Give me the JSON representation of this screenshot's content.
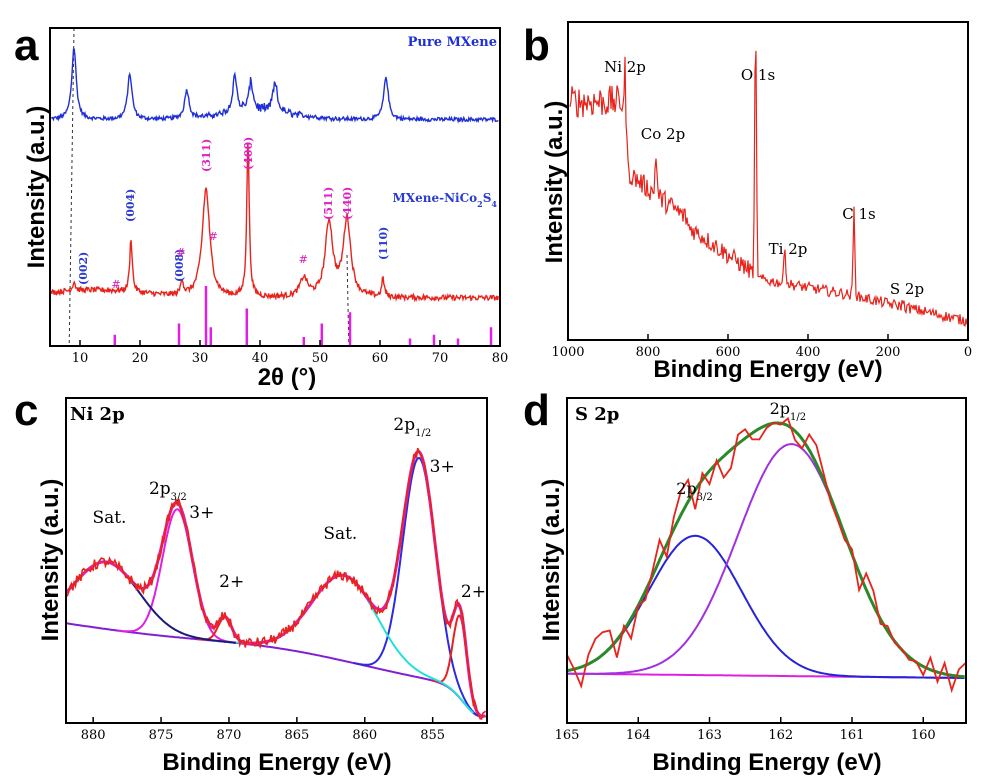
{
  "panels": [
    "a",
    "b",
    "c",
    "d"
  ],
  "chart_data": [
    {
      "id": "a",
      "type": "line",
      "xlabel": "2θ (°)",
      "ylabel": "Intensity (a.u.)",
      "xlim": [
        5,
        80
      ],
      "xticks": [
        10,
        20,
        30,
        40,
        50,
        60,
        70,
        80
      ],
      "colors": {
        "pure": "#1f2fd6",
        "composite": "#e8231b",
        "ref": "#e020e0",
        "hkl_blue": "#2b3bd0",
        "hkl_pink": "#e020c0"
      },
      "legend": {
        "pure": "Pure MXene",
        "composite_prefix": "MXene-NiCo",
        "composite_sub1": "2",
        "composite_mid": "S",
        "composite_sub2": "4"
      },
      "series": [
        {
          "name": "Pure MXene",
          "peaks": [
            [
              9,
              0.55
            ],
            [
              18.3,
              0.35
            ],
            [
              27.8,
              0.22
            ],
            [
              35.8,
              0.28
            ],
            [
              38.5,
              0.22
            ],
            [
              42.5,
              0.22
            ],
            [
              61,
              0.33
            ]
          ],
          "baseline": 0.05
        },
        {
          "name": "MXene-NiCo2S4",
          "peaks": [
            [
              9,
              0.06
            ],
            [
              18.5,
              0.35
            ],
            [
              27,
              0.1
            ],
            [
              31,
              0.7
            ],
            [
              38,
              1.0
            ],
            [
              47.3,
              0.12
            ],
            [
              51.5,
              0.48
            ],
            [
              54.5,
              0.5
            ],
            [
              60.5,
              0.12
            ]
          ],
          "baseline": 0.1
        }
      ],
      "reference_lines": [
        {
          "x": 15.8,
          "h": 0.15
        },
        {
          "x": 26.5,
          "h": 0.3
        },
        {
          "x": 31,
          "h": 0.8
        },
        {
          "x": 31.8,
          "h": 0.25
        },
        {
          "x": 37.8,
          "h": 0.5
        },
        {
          "x": 47.3,
          "h": 0.12
        },
        {
          "x": 50.3,
          "h": 0.3
        },
        {
          "x": 55,
          "h": 0.45
        },
        {
          "x": 65,
          "h": 0.1
        },
        {
          "x": 69,
          "h": 0.15
        },
        {
          "x": 73,
          "h": 0.1
        },
        {
          "x": 78.5,
          "h": 0.25
        }
      ],
      "hkl_labels": [
        {
          "text": "(002)",
          "x": 10.5,
          "color": "blue"
        },
        {
          "text": "(004)",
          "x": 18.3,
          "color": "blue"
        },
        {
          "text": "(008)",
          "x": 26.5,
          "color": "blue"
        },
        {
          "text": "(311)",
          "x": 31,
          "color": "pink"
        },
        {
          "text": "(400)",
          "x": 38,
          "color": "pink"
        },
        {
          "text": "(511)",
          "x": 51.3,
          "color": "pink"
        },
        {
          "text": "(440)",
          "x": 54.5,
          "color": "pink"
        },
        {
          "text": "(110)",
          "x": 60.5,
          "color": "blue"
        }
      ]
    },
    {
      "id": "b",
      "type": "line",
      "xlabel": "Binding Energy (eV)",
      "ylabel": "Intensity (a.u.)",
      "xlim": [
        1000,
        0
      ],
      "xticks": [
        1000,
        800,
        600,
        400,
        200,
        0
      ],
      "color": "#e8231b",
      "peaks": [
        {
          "label": "Ni 2p",
          "x": 855,
          "y": 0.62
        },
        {
          "label": "Co 2p",
          "x": 780,
          "y": 0.46
        },
        {
          "label": "O 1s",
          "x": 531,
          "y": 0.93
        },
        {
          "label": "Ti 2p",
          "x": 458,
          "y": 0.15
        },
        {
          "label": "C 1s",
          "x": 285,
          "y": 0.32
        },
        {
          "label": "S 2p",
          "x": 163,
          "y": 0.02
        }
      ]
    },
    {
      "id": "c",
      "type": "line",
      "title": "Ni 2p",
      "xlabel": "Binding Energy (eV)",
      "ylabel": "Intensity (a.u.)",
      "xlim": [
        882,
        851
      ],
      "xticks": [
        880,
        875,
        870,
        865,
        860,
        855
      ],
      "components": [
        {
          "name": "Ni3+ 2p1/2",
          "center": 856,
          "sigma": 1.2,
          "amp": 0.72,
          "color": "#2b2be0"
        },
        {
          "name": "Ni2+ 2p1/2",
          "center": 853,
          "sigma": 0.5,
          "amp": 0.27,
          "color": "#e8231b"
        },
        {
          "name": "Sat. (~862)",
          "center": 861.5,
          "sigma": 2.4,
          "amp": 0.28,
          "color": "#20e0d8"
        },
        {
          "name": "Ni3+ 2p3/2",
          "center": 873.8,
          "sigma": 1.1,
          "amp": 0.42,
          "color": "#e020e0"
        },
        {
          "name": "Ni2+ 2p3/2",
          "center": 870.3,
          "sigma": 0.5,
          "amp": 0.08,
          "color": "#e8231b"
        },
        {
          "name": "Sat. (~879)",
          "center": 879,
          "sigma": 2.4,
          "amp": 0.22,
          "color": "#1a1a7a"
        }
      ],
      "baseline_color": "#8020d0",
      "annotations": [
        {
          "text": "Sat.",
          "x": 878.8,
          "color": "#000"
        },
        {
          "text": "Sat.",
          "x": 861.8,
          "color": "#000"
        },
        {
          "text": "3+",
          "x": 872.0,
          "color": "#1a1a9a"
        },
        {
          "text": "2+",
          "x": 869.8,
          "color": "#e8231b"
        },
        {
          "text": "3+",
          "x": 854.3,
          "color": "#1a1a9a"
        },
        {
          "text": "2+",
          "x": 852.0,
          "color": "#e8231b"
        }
      ],
      "peak_labels": [
        {
          "main": "2p",
          "sub": "3/2",
          "x": 874.5
        },
        {
          "main": "2p",
          "sub": "1/2",
          "x": 856.5
        }
      ]
    },
    {
      "id": "d",
      "type": "line",
      "title": "S 2p",
      "xlabel": "Binding Energy (eV)",
      "ylabel": "Intensity (a.u.)",
      "xlim": [
        165,
        159.4
      ],
      "xticks": [
        165,
        164,
        163,
        162,
        161,
        160
      ],
      "components": [
        {
          "name": "S 2p3/2",
          "center": 163.2,
          "sigma": 0.65,
          "amp": 0.48,
          "color": "#2424d8"
        },
        {
          "name": "S 2p1/2",
          "center": 161.85,
          "sigma": 0.75,
          "amp": 0.8,
          "color": "#a030e0"
        }
      ],
      "envelope_color": "#2a8a2a",
      "raw_color": "#e8231b",
      "baseline_color": "#e020e0",
      "peak_labels": [
        {
          "main": "2p",
          "sub": "3/2",
          "x": 163.0
        },
        {
          "main": "2p",
          "sub": "1/2",
          "x": 161.9
        }
      ]
    }
  ]
}
